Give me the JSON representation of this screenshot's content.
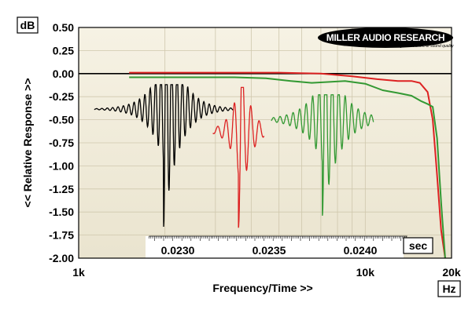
{
  "chart_data": {
    "type": "line",
    "ylabel": "<< Relative Response >>",
    "y_unit": "dB",
    "xlabel": "Frequency/Time >>",
    "x_unit": "Hz",
    "time_unit": "sec",
    "x_scale": "log",
    "xlim": [
      1000,
      20000
    ],
    "ylim": [
      -2.0,
      0.5
    ],
    "y_ticks": [
      "0.50",
      "0.25",
      "0.00",
      "-0.25",
      "-0.50",
      "-0.75",
      "-1.00",
      "-1.25",
      "-1.50",
      "-1.75",
      "-2.00"
    ],
    "x_ticks": [
      {
        "value": 1000,
        "label": "1k"
      },
      {
        "value": 10000,
        "label": "10k"
      },
      {
        "value": 20000,
        "label": "20k"
      }
    ],
    "time_ticks": [
      {
        "value": 0.023,
        "label": "0.0230"
      },
      {
        "value": 0.0235,
        "label": "0.0235"
      },
      {
        "value": 0.024,
        "label": "0.0240"
      }
    ],
    "grid": true,
    "series": [
      {
        "color": "#000000",
        "kind": "frequency",
        "x": [
          1000,
          2000,
          5000,
          10000,
          15000,
          20000
        ],
        "y": [
          0.0,
          0.0,
          0.0,
          0.0,
          0.0,
          0.0
        ]
      },
      {
        "color": "#dd2222",
        "kind": "frequency",
        "x": [
          1500,
          3000,
          5000,
          7000,
          9000,
          11000,
          13000,
          14500,
          15500,
          16500,
          17200,
          17800,
          18400,
          19000
        ],
        "y": [
          0.01,
          0.01,
          0.01,
          0.0,
          -0.03,
          -0.06,
          -0.08,
          -0.08,
          -0.1,
          -0.2,
          -0.5,
          -1.1,
          -1.7,
          -2.0
        ]
      },
      {
        "color": "#339933",
        "kind": "frequency",
        "x": [
          1500,
          2500,
          3500,
          4500,
          5500,
          6500,
          7500,
          8500,
          10000,
          11500,
          13000,
          14500,
          15700,
          16500,
          17200,
          17800,
          18400,
          19000
        ],
        "y": [
          -0.04,
          -0.04,
          -0.04,
          -0.05,
          -0.08,
          -0.1,
          -0.09,
          -0.08,
          -0.11,
          -0.18,
          -0.21,
          -0.24,
          -0.3,
          -0.33,
          -0.36,
          -0.7,
          -1.4,
          -2.0
        ]
      }
    ],
    "impulses": [
      {
        "color": "#000000",
        "center": 0.023,
        "half_width": 0.00038,
        "baseline": -0.385,
        "peak": -0.12,
        "trough": -1.66,
        "decay_ms": 0.08,
        "freq_khz": 34
      },
      {
        "color": "#dd2222",
        "center": 0.02341,
        "half_width": 0.00014,
        "baseline": -0.62,
        "peak": -0.15,
        "trough": -1.67,
        "decay_ms": 0.05,
        "freq_khz": 22
      },
      {
        "color": "#339933",
        "center": 0.02387,
        "half_width": 0.00028,
        "baseline": -0.5,
        "peak": -0.23,
        "trough": -1.54,
        "decay_ms": 0.09,
        "freq_khz": 28
      }
    ]
  },
  "legend": {
    "brand": "MILLER AUDIO RESEARCH",
    "tagline": "Setting the measure of sound quality"
  }
}
